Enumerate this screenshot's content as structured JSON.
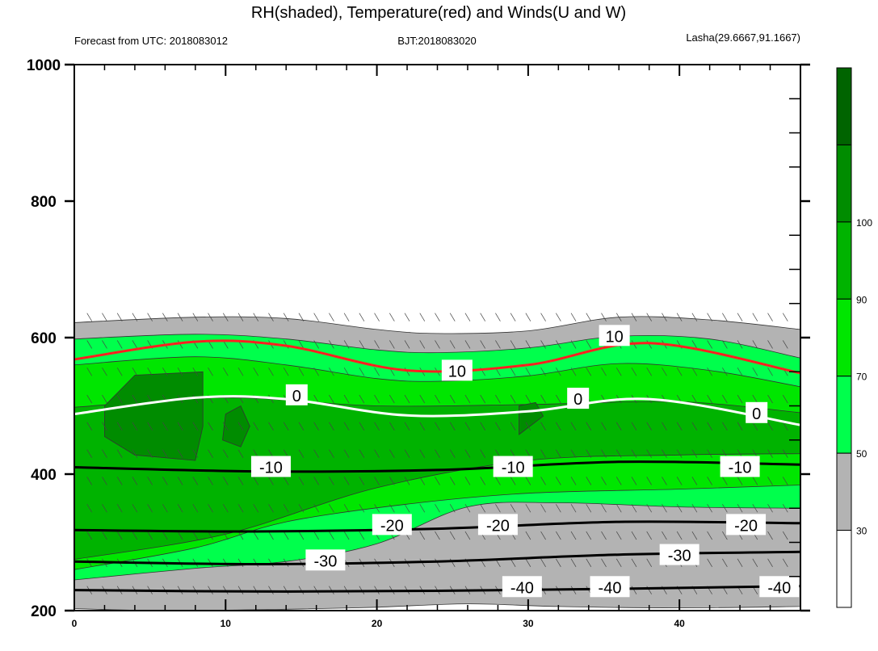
{
  "header": {
    "title": "RH(shaded), Temperature(red) and Winds(U and W)",
    "left": "Forecast from UTC: 2018083012",
    "center": "BJT:2018083020",
    "right": "Lasha(29.6667,91.1667)"
  },
  "chart_data": {
    "type": "heatmap",
    "title": "RH(shaded), Temperature(red) and Winds(U and W)",
    "xlim": [
      0,
      48
    ],
    "ylim": [
      1000,
      200
    ],
    "x_ticks": [
      0,
      10,
      20,
      30,
      40
    ],
    "x_ticklabels": [
      "0",
      "10",
      "20",
      "30",
      "40"
    ],
    "y_ticks": [
      200,
      400,
      600,
      800,
      1000
    ],
    "y_ticklabels": [
      "200",
      "400",
      "600",
      "800",
      "1000"
    ],
    "colorbar": {
      "levels": [
        30,
        50,
        70,
        90,
        100
      ],
      "level_labels": [
        "30",
        "50",
        "70",
        "90",
        "100"
      ],
      "colors": [
        "#ffffff",
        "#b3b3b3",
        "#00ff4c",
        "#00e600",
        "#00b300",
        "#008c00",
        "#006400"
      ]
    },
    "rh_bands": [
      {
        "band": "30-50",
        "top": [
          [
            0,
            203
          ],
          [
            6,
            200
          ],
          [
            14,
            202
          ],
          [
            20,
            205
          ],
          [
            26,
            210
          ],
          [
            32,
            206
          ],
          [
            40,
            204
          ],
          [
            48,
            206
          ]
        ],
        "bottom": [
          [
            0,
            622
          ],
          [
            8,
            630
          ],
          [
            14,
            628
          ],
          [
            20,
            612
          ],
          [
            24,
            606
          ],
          [
            30,
            610
          ],
          [
            36,
            630
          ],
          [
            42,
            626
          ],
          [
            48,
            612
          ]
        ]
      },
      {
        "band": "50-70",
        "top": [
          [
            0,
            245
          ],
          [
            8,
            262
          ],
          [
            14,
            272
          ],
          [
            20,
            298
          ],
          [
            26,
            352
          ],
          [
            32,
            358
          ],
          [
            40,
            352
          ],
          [
            48,
            350
          ]
        ],
        "bottom": [
          [
            0,
            598
          ],
          [
            8,
            605
          ],
          [
            14,
            598
          ],
          [
            20,
            582
          ],
          [
            24,
            578
          ],
          [
            30,
            585
          ],
          [
            36,
            602
          ],
          [
            42,
            598
          ],
          [
            48,
            570
          ]
        ]
      },
      {
        "band": "70-90",
        "top": [
          [
            0,
            260
          ],
          [
            8,
            292
          ],
          [
            14,
            330
          ],
          [
            22,
            356
          ],
          [
            30,
            372
          ],
          [
            40,
            378
          ],
          [
            48,
            384
          ]
        ],
        "bottom": [
          [
            0,
            560
          ],
          [
            8,
            572
          ],
          [
            14,
            560
          ],
          [
            20,
            540
          ],
          [
            24,
            536
          ],
          [
            30,
            544
          ],
          [
            36,
            562
          ],
          [
            42,
            552
          ],
          [
            48,
            528
          ]
        ]
      },
      {
        "band": "90-100",
        "top": [
          [
            0,
            275
          ],
          [
            10,
            312
          ],
          [
            20,
            380
          ],
          [
            30,
            420
          ],
          [
            40,
            428
          ],
          [
            48,
            430
          ]
        ],
        "bottom": [
          [
            0,
            498
          ],
          [
            10,
            512
          ],
          [
            20,
            500
          ],
          [
            30,
            502
          ],
          [
            40,
            506
          ],
          [
            48,
            490
          ]
        ]
      }
    ],
    "rh_cells": [
      {
        "level": "90-100",
        "points": [
          [
            2,
            455
          ],
          [
            4,
            428
          ],
          [
            8,
            420
          ],
          [
            8.5,
            470
          ],
          [
            8.5,
            550
          ],
          [
            4,
            545
          ],
          [
            2,
            500
          ]
        ]
      },
      {
        "level": "90-100",
        "points": [
          [
            9.8,
            450
          ],
          [
            11,
            440
          ],
          [
            11.6,
            470
          ],
          [
            11,
            500
          ],
          [
            10,
            488
          ]
        ]
      },
      {
        "level": "90-100",
        "points": [
          [
            29.4,
            458
          ],
          [
            31,
            485
          ],
          [
            30.5,
            505
          ],
          [
            29.4,
            500
          ]
        ]
      }
    ],
    "temperature_contours": [
      {
        "value": -40,
        "label": "-40",
        "color": "#000000",
        "points": [
          [
            0,
            230
          ],
          [
            12,
            228
          ],
          [
            24,
            229
          ],
          [
            36,
            232
          ],
          [
            48,
            236
          ]
        ],
        "label_at": [
          [
            29.6,
            234
          ],
          [
            35.4,
            234
          ],
          [
            46.6,
            234
          ]
        ]
      },
      {
        "value": -30,
        "label": "-30",
        "color": "#000000",
        "points": [
          [
            0,
            272
          ],
          [
            12,
            268
          ],
          [
            24,
            272
          ],
          [
            36,
            282
          ],
          [
            48,
            286
          ]
        ],
        "label_at": [
          [
            16.6,
            273
          ],
          [
            40,
            281
          ]
        ]
      },
      {
        "value": -20,
        "label": "-20",
        "color": "#000000",
        "points": [
          [
            0,
            318
          ],
          [
            12,
            316
          ],
          [
            24,
            320
          ],
          [
            36,
            330
          ],
          [
            48,
            328
          ]
        ],
        "label_at": [
          [
            21,
            325
          ],
          [
            28,
            325
          ],
          [
            44.4,
            325
          ]
        ]
      },
      {
        "value": -10,
        "label": "-10",
        "color": "#000000",
        "points": [
          [
            0,
            410
          ],
          [
            12,
            404
          ],
          [
            24,
            406
          ],
          [
            36,
            418
          ],
          [
            48,
            414
          ]
        ],
        "label_at": [
          [
            13,
            410
          ],
          [
            29,
            410
          ],
          [
            44,
            410
          ]
        ]
      },
      {
        "value": 0,
        "label": "0",
        "color": "#ffffff",
        "points": [
          [
            0,
            488
          ],
          [
            8,
            512
          ],
          [
            14,
            510
          ],
          [
            22,
            486
          ],
          [
            30,
            492
          ],
          [
            38,
            510
          ],
          [
            48,
            472
          ]
        ],
        "label_at": [
          [
            14.7,
            515
          ],
          [
            33.3,
            510
          ],
          [
            45.1,
            489
          ]
        ]
      },
      {
        "value": 10,
        "label": "10",
        "color": "#ff2020",
        "points": [
          [
            0,
            568
          ],
          [
            8,
            594
          ],
          [
            14,
            588
          ],
          [
            22,
            552
          ],
          [
            30,
            560
          ],
          [
            38,
            592
          ],
          [
            48,
            548
          ]
        ],
        "label_at": [
          [
            25.3,
            551
          ],
          [
            35.7,
            602
          ]
        ]
      }
    ],
    "wind_barb_rows": [
      230,
      270,
      310,
      350,
      390,
      430,
      470,
      510,
      550,
      590,
      630
    ]
  }
}
